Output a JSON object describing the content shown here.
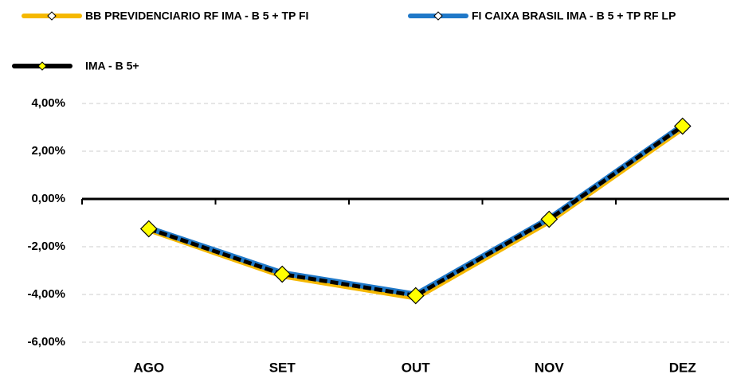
{
  "chart_data": {
    "type": "line",
    "categories": [
      "AGO",
      "SET",
      "OUT",
      "NOV",
      "DEZ"
    ],
    "series": [
      {
        "name": "BB PREVIDENCIARIO RF IMA - B 5 + TP FI",
        "color": "#f5b800",
        "values": [
          -1.27,
          -3.2,
          -4.12,
          -0.92,
          2.98
        ]
      },
      {
        "name": "FI CAIXA BRASIL IMA - B 5 + TP RF LP",
        "color": "#1f78c8",
        "values": [
          -1.22,
          -3.1,
          -4.0,
          -0.82,
          3.08
        ]
      },
      {
        "name": "IMA - B 5+",
        "color": "#000000",
        "values": [
          -1.25,
          -3.15,
          -4.05,
          -0.85,
          3.05
        ]
      }
    ],
    "ylim": [
      -6,
      4
    ],
    "yticks": [
      {
        "value": -6,
        "label": "-6,00%"
      },
      {
        "value": -4,
        "label": "-4,00%"
      },
      {
        "value": -2,
        "label": "-2,00%"
      },
      {
        "value": 0,
        "label": "0,00%"
      },
      {
        "value": 2,
        "label": "2,00%"
      },
      {
        "value": 4,
        "label": "4,00%"
      }
    ],
    "grid": true
  }
}
